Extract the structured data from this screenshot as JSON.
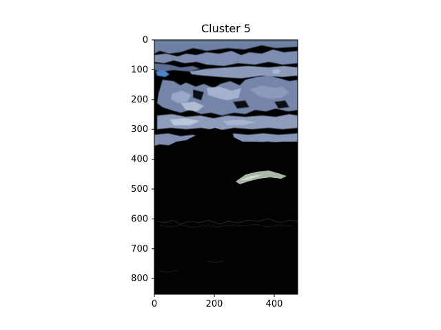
{
  "title": "Cluster 5",
  "image": {
    "description_colors": {
      "background": "#010101",
      "cloud_light": "#8a98b4",
      "cloud_mid": "#5e6f92",
      "cloud_bright": "#b4bfd4",
      "accent_blue": "#4a86c8",
      "ridge_highlight": "#a9b9a6"
    }
  },
  "axes": {
    "x_ticks": [
      "0",
      "200",
      "400"
    ],
    "y_ticks": [
      "0",
      "100",
      "200",
      "300",
      "400",
      "500",
      "600",
      "700",
      "800"
    ],
    "x_range": [
      0,
      480
    ],
    "y_range": [
      0,
      853
    ]
  }
}
